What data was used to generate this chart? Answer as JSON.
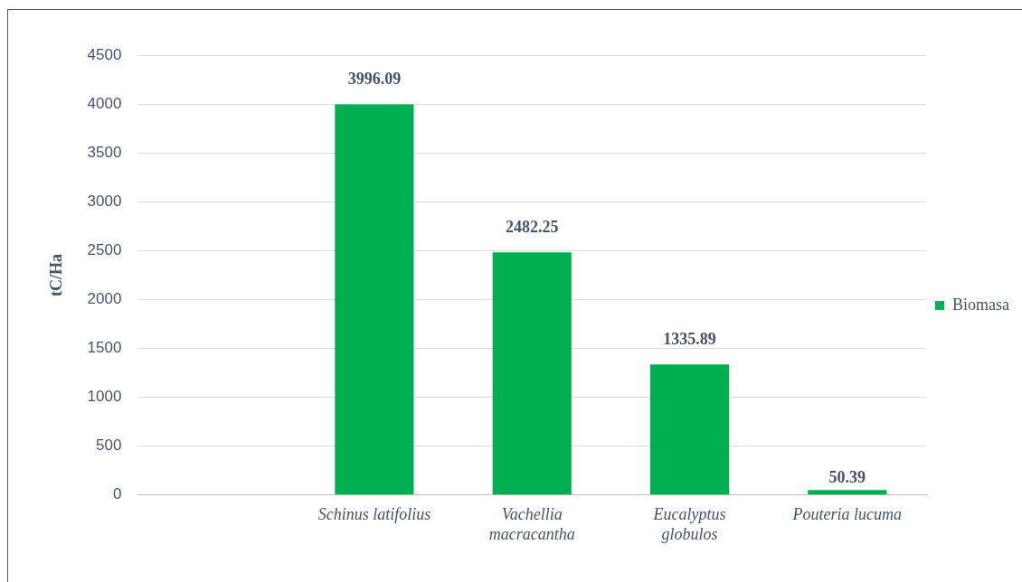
{
  "chart_data": {
    "type": "bar",
    "ylabel": "tC/Ha",
    "categories": [
      null,
      "Schinus latifolius",
      "Vachellia macracantha",
      "Eucalyptus globulos",
      "Pouteria lucuma"
    ],
    "series": [
      {
        "name": "Biomasa",
        "color": "#00b050",
        "values": [
          null,
          3996.09,
          2482.25,
          1335.89,
          50.39
        ]
      }
    ],
    "ylim": [
      0,
      4500
    ],
    "yticks": [
      0,
      500,
      1000,
      1500,
      2000,
      2500,
      3000,
      3500,
      4000,
      4500
    ],
    "grid": "y",
    "legend": "right",
    "data_labels": true
  }
}
